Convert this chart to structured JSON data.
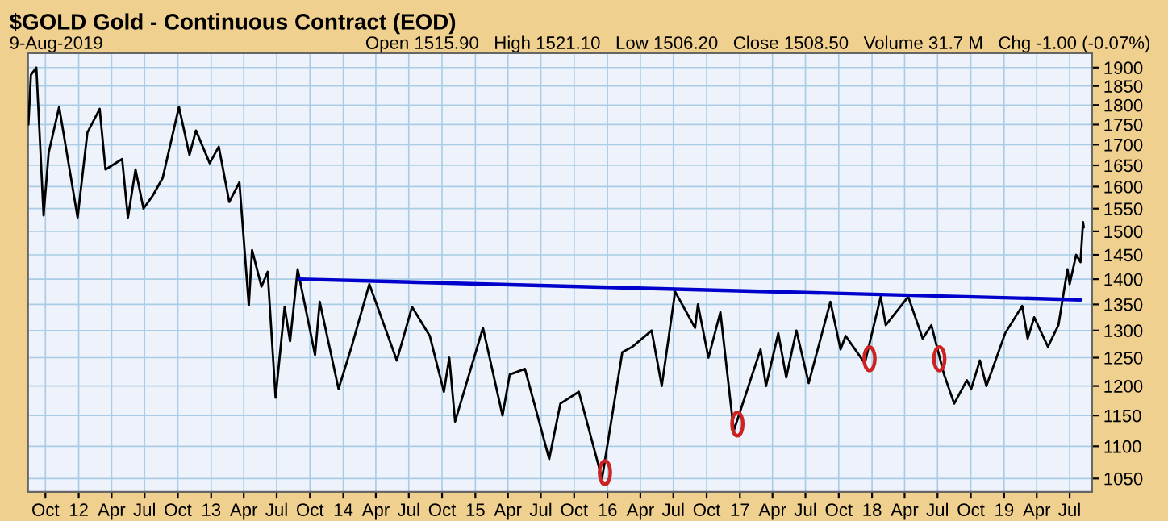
{
  "chart_data": {
    "type": "line",
    "title": "$GOLD Gold - Continuous Contract (EOD)",
    "subtitle": "9-Aug-2019",
    "annotations": [
      "Open 1515.90",
      "High 1521.10",
      "Low 1506.20",
      "Close 1508.50",
      "Volume 31.7 M",
      "Chg -1.00 (-0.07%)"
    ],
    "series": [
      {
        "color": "#000000",
        "x": [
          "2011-08-15",
          "2011-08-22",
          "2011-09-06",
          "2011-09-26",
          "2011-10-10",
          "2011-11-08",
          "2011-12-29",
          "2012-01-25",
          "2012-02-28",
          "2012-03-15",
          "2012-04-30",
          "2012-05-16",
          "2012-06-06",
          "2012-06-28",
          "2012-07-24",
          "2012-08-20",
          "2012-10-04",
          "2012-11-02",
          "2012-11-20",
          "2012-12-28",
          "2013-01-22",
          "2013-02-20",
          "2013-03-20",
          "2013-04-15",
          "2013-04-24",
          "2013-05-20",
          "2013-06-06",
          "2013-06-28",
          "2013-07-23",
          "2013-08-07",
          "2013-08-28",
          "2013-10-15",
          "2013-10-28",
          "2013-12-19",
          "2014-01-24",
          "2014-03-14",
          "2014-05-29",
          "2014-07-10",
          "2014-08-28",
          "2014-10-06",
          "2014-10-21",
          "2014-11-06",
          "2015-01-22",
          "2015-03-17",
          "2015-04-06",
          "2015-05-18",
          "2015-07-24",
          "2015-08-24",
          "2015-10-14",
          "2015-12-17",
          "2016-02-11",
          "2016-03-10",
          "2016-05-02",
          "2016-05-30",
          "2016-07-06",
          "2016-08-30",
          "2016-09-07",
          "2016-10-06",
          "2016-11-08",
          "2016-12-15",
          "2017-02-27",
          "2017-03-14",
          "2017-04-17",
          "2017-05-09",
          "2017-06-06",
          "2017-07-10",
          "2017-09-08",
          "2017-10-06",
          "2017-10-20",
          "2017-12-12",
          "2018-01-25",
          "2018-02-08",
          "2018-04-11",
          "2018-05-21",
          "2018-06-14",
          "2018-07-19",
          "2018-08-16",
          "2018-09-20",
          "2018-10-02",
          "2018-10-26",
          "2018-11-13",
          "2019-01-04",
          "2019-02-20",
          "2019-03-07",
          "2019-03-25",
          "2019-05-02",
          "2019-05-31",
          "2019-06-25",
          "2019-07-01",
          "2019-07-19",
          "2019-07-31",
          "2019-08-07",
          "2019-08-09"
        ],
        "values": [
          1750,
          1880,
          1900,
          1535,
          1680,
          1795,
          1530,
          1730,
          1790,
          1640,
          1665,
          1530,
          1640,
          1550,
          1580,
          1620,
          1795,
          1675,
          1735,
          1655,
          1695,
          1565,
          1610,
          1348,
          1460,
          1385,
          1415,
          1180,
          1345,
          1280,
          1420,
          1255,
          1355,
          1195,
          1270,
          1390,
          1245,
          1345,
          1290,
          1190,
          1250,
          1140,
          1305,
          1150,
          1220,
          1230,
          1080,
          1170,
          1190,
          1050,
          1260,
          1270,
          1300,
          1200,
          1375,
          1305,
          1350,
          1250,
          1335,
          1125,
          1265,
          1200,
          1295,
          1215,
          1300,
          1205,
          1355,
          1265,
          1290,
          1240,
          1365,
          1310,
          1365,
          1285,
          1310,
          1220,
          1170,
          1210,
          1195,
          1245,
          1200,
          1295,
          1347,
          1285,
          1325,
          1270,
          1310,
          1420,
          1390,
          1450,
          1435,
          1520,
          1508.5
        ]
      },
      {
        "type": "line",
        "color": "#0000cc",
        "x": [
          "2013-09-01",
          "2019-08-01"
        ],
        "values": [
          1400,
          1359
        ]
      },
      {
        "type": "scatter",
        "color": "#cc2222",
        "marker": "circle",
        "x": [
          "2015-12-25",
          "2016-12-25",
          "2017-12-25",
          "2018-07-06"
        ],
        "values": [
          1059,
          1136,
          1248,
          1248
        ]
      }
    ],
    "log": "y",
    "grid": true,
    "xlim": [
      "2011-08-14",
      "2019-09-01"
    ],
    "ylim": [
      1030,
      1940
    ],
    "yticks": [
      1050,
      1100,
      1150,
      1200,
      1250,
      1300,
      1350,
      1400,
      1450,
      1500,
      1550,
      1600,
      1650,
      1700,
      1750,
      1800,
      1850,
      1900
    ],
    "xticks": [
      {
        "value": "2011-10-01",
        "label": "Oct"
      },
      {
        "value": "2012-01-01",
        "label": "12"
      },
      {
        "value": "2012-04-01",
        "label": "Apr"
      },
      {
        "value": "2012-07-01",
        "label": "Jul"
      },
      {
        "value": "2012-10-01",
        "label": "Oct"
      },
      {
        "value": "2013-01-01",
        "label": "13"
      },
      {
        "value": "2013-04-01",
        "label": "Apr"
      },
      {
        "value": "2013-07-01",
        "label": "Jul"
      },
      {
        "value": "2013-10-01",
        "label": "Oct"
      },
      {
        "value": "2014-01-01",
        "label": "14"
      },
      {
        "value": "2014-04-01",
        "label": "Apr"
      },
      {
        "value": "2014-07-01",
        "label": "Jul"
      },
      {
        "value": "2014-10-01",
        "label": "Oct"
      },
      {
        "value": "2015-01-01",
        "label": "15"
      },
      {
        "value": "2015-04-01",
        "label": "Apr"
      },
      {
        "value": "2015-07-01",
        "label": "Jul"
      },
      {
        "value": "2015-10-01",
        "label": "Oct"
      },
      {
        "value": "2016-01-01",
        "label": "16"
      },
      {
        "value": "2016-04-01",
        "label": "Apr"
      },
      {
        "value": "2016-07-01",
        "label": "Jul"
      },
      {
        "value": "2016-10-01",
        "label": "Oct"
      },
      {
        "value": "2017-01-01",
        "label": "17"
      },
      {
        "value": "2017-04-01",
        "label": "Apr"
      },
      {
        "value": "2017-07-01",
        "label": "Jul"
      },
      {
        "value": "2017-10-01",
        "label": "Oct"
      },
      {
        "value": "2018-01-01",
        "label": "18"
      },
      {
        "value": "2018-04-01",
        "label": "Apr"
      },
      {
        "value": "2018-07-01",
        "label": "Jul"
      },
      {
        "value": "2018-10-01",
        "label": "Oct"
      },
      {
        "value": "2019-01-01",
        "label": "19"
      },
      {
        "value": "2019-04-01",
        "label": "Apr"
      },
      {
        "value": "2019-07-01",
        "label": "Jul"
      }
    ]
  }
}
